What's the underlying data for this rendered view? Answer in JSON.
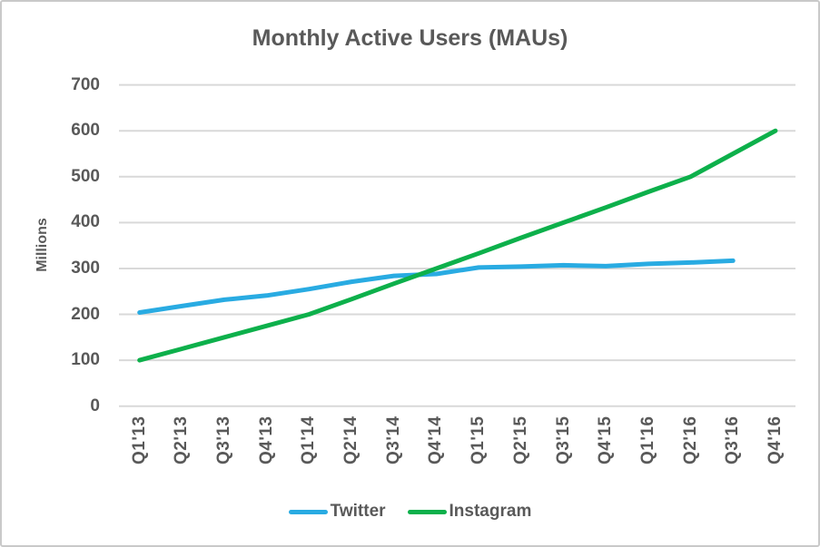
{
  "title": "Monthly Active Users (MAUs)",
  "colors": {
    "twitter": "#29ABE2",
    "instagram": "#0DB04B",
    "text": "#595959",
    "gridline": "#D9D9D9",
    "background": "#FFFFFF",
    "border": "#C9C9C9"
  },
  "chart_data": {
    "type": "line",
    "title": "Monthly Active Users (MAUs)",
    "xlabel": "",
    "ylabel": "Millions",
    "categories": [
      "Q1'13",
      "Q2'13",
      "Q3'13",
      "Q4'13",
      "Q1'14",
      "Q2'14",
      "Q3'14",
      "Q4'14",
      "Q1'15",
      "Q2'15",
      "Q3'15",
      "Q4'15",
      "Q1'16",
      "Q2'16",
      "Q3'16",
      "Q4'16"
    ],
    "series": [
      {
        "name": "Twitter",
        "color": "#29ABE2",
        "values": [
          204,
          218,
          232,
          241,
          255,
          271,
          284,
          288,
          302,
          304,
          307,
          305,
          310,
          313,
          317,
          null
        ]
      },
      {
        "name": "Instagram",
        "color": "#0DB04B",
        "values": [
          100,
          125,
          150,
          175,
          200,
          233,
          267,
          300,
          333,
          367,
          400,
          433,
          467,
          500,
          550,
          600
        ]
      }
    ],
    "ylim": [
      0,
      700
    ],
    "yticks": [
      0,
      100,
      200,
      300,
      400,
      500,
      600,
      700
    ],
    "grid": "horizontal",
    "legend_position": "bottom"
  },
  "legend": {
    "items": [
      {
        "label": "Twitter",
        "color": "#29ABE2"
      },
      {
        "label": "Instagram",
        "color": "#0DB04B"
      }
    ]
  }
}
